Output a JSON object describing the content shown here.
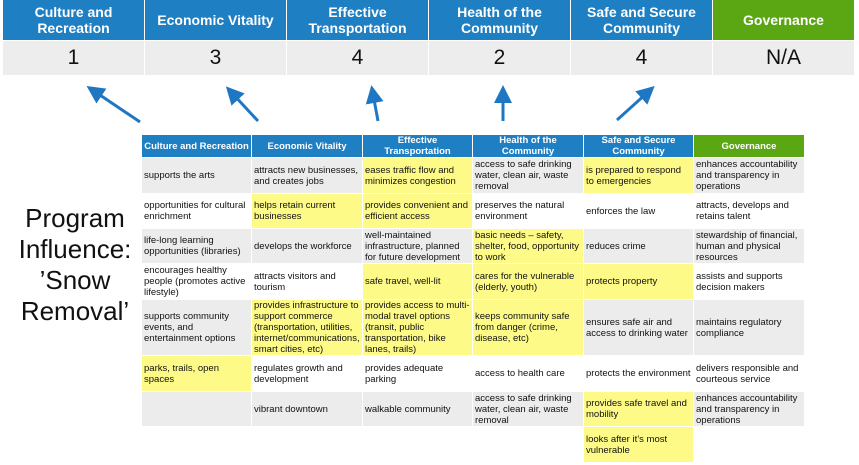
{
  "summary": {
    "headers": [
      "Culture and Recreation",
      "Economic Vitality",
      "Effective Transportation",
      "Health of the Community",
      "Safe and Secure Community",
      "Governance"
    ],
    "scores": [
      "1",
      "3",
      "4",
      "2",
      "4",
      "N/A"
    ]
  },
  "side_label": "Program Influence: ’Snow Removal’",
  "colors": {
    "header_blue": "#1f7fc3",
    "governance_green": "#5ba613",
    "highlight_yellow": "#fdfa87",
    "arrow_blue": "#1f77c4"
  },
  "table": {
    "headers": [
      "Culture and Recreation",
      "Economic Vitality",
      "Effective Transportation",
      "Health of the Community",
      "Safe and Secure Community",
      "Governance"
    ],
    "rows": [
      {
        "cells": [
          "supports the arts",
          "attracts new businesses, and creates jobs",
          "eases traffic flow and minimizes congestion",
          "access to safe drinking water, clean air, waste removal",
          "is prepared to respond to emergencies",
          "enhances accountability and transparency in operations"
        ],
        "highlighted": [
          false,
          false,
          true,
          false,
          true,
          false
        ]
      },
      {
        "cells": [
          "opportunities for cultural enrichment",
          "helps retain current businesses",
          "provides convenient and efficient access",
          "preserves the natural environment",
          "enforces the law",
          "attracts, develops and retains talent"
        ],
        "highlighted": [
          false,
          true,
          true,
          false,
          false,
          false
        ]
      },
      {
        "cells": [
          "life-long learning opportunities (libraries)",
          "develops the workforce",
          "well-maintained infrastructure, planned for future development",
          "basic needs – safety, shelter, food, opportunity to work",
          "reduces crime",
          "stewardship of financial, human and physical resources"
        ],
        "highlighted": [
          false,
          false,
          false,
          true,
          false,
          false
        ]
      },
      {
        "cells": [
          "encourages healthy people (promotes active lifestyle)",
          "attracts visitors and tourism",
          "safe travel, well-lit",
          "cares for the vulnerable (elderly, youth)",
          "protects property",
          "assists and supports decision makers"
        ],
        "highlighted": [
          false,
          false,
          true,
          true,
          true,
          false
        ]
      },
      {
        "cells": [
          "supports community events, and entertainment options",
          "provides infrastructure to support commerce (transportation, utilities, internet/communications, smart cities, etc)",
          "provides access to multi-modal travel options (transit, public transportation, bike lanes, trails)",
          "keeps community safe from danger (crime, disease, etc)",
          "ensures safe air and access to drinking water",
          "maintains regulatory compliance"
        ],
        "highlighted": [
          false,
          true,
          true,
          true,
          false,
          false
        ]
      },
      {
        "cells": [
          "parks, trails, open spaces",
          "regulates growth and development",
          "provides adequate parking",
          "access to health care",
          "protects the environment",
          "delivers responsible and courteous service"
        ],
        "highlighted": [
          true,
          false,
          false,
          false,
          false,
          false
        ]
      },
      {
        "cells": [
          "",
          "vibrant downtown",
          "walkable community",
          "access to safe drinking water, clean air, waste removal",
          "provides safe travel and mobility",
          "enhances accountability and transparency in operations"
        ],
        "highlighted": [
          false,
          false,
          false,
          false,
          true,
          false
        ]
      },
      {
        "cells": [
          "",
          "",
          "",
          "",
          "looks after it’s most vulnerable",
          ""
        ],
        "highlighted": [
          false,
          false,
          false,
          false,
          true,
          false
        ]
      }
    ]
  }
}
